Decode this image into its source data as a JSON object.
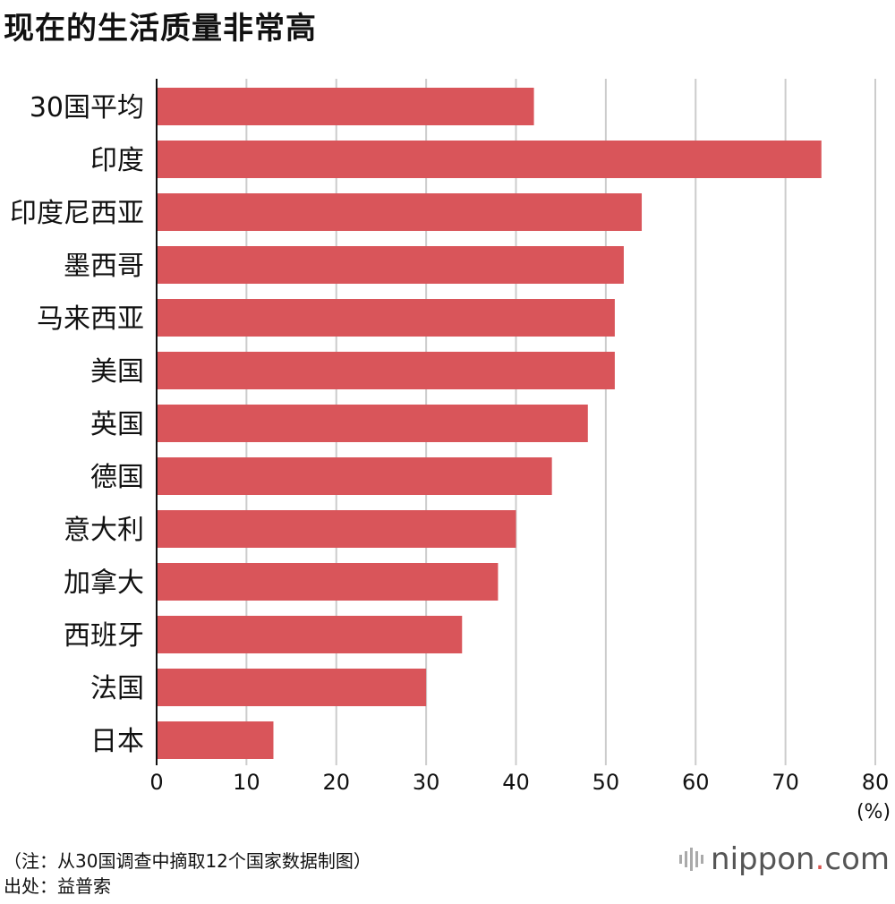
{
  "title": "现在的生活质量非常高",
  "chart_data": {
    "type": "bar",
    "orientation": "horizontal",
    "title": "现在的生活质量非常高",
    "categories": [
      "30国平均",
      "印度",
      "印度尼西亚",
      "墨西哥",
      "马来西亚",
      "美国",
      "英国",
      "德国",
      "意大利",
      "加拿大",
      "西班牙",
      "法国",
      "日本"
    ],
    "values": [
      42,
      74,
      54,
      52,
      51,
      51,
      48,
      44,
      40,
      38,
      34,
      30,
      13
    ],
    "xticks": [
      "0",
      "10",
      "20",
      "30",
      "40",
      "50",
      "60",
      "70",
      "80"
    ],
    "xlim": [
      0,
      80
    ],
    "unit": "(%)",
    "grid": true,
    "bar_color": "#d9555a",
    "grid_color": "#cccccc"
  },
  "footer": {
    "note": "（注：从30国调查中摘取12个国家数据制图）",
    "source": "出处：益普索"
  },
  "logo": {
    "name": "nippon",
    "dot": ".",
    "suffix": "com"
  }
}
